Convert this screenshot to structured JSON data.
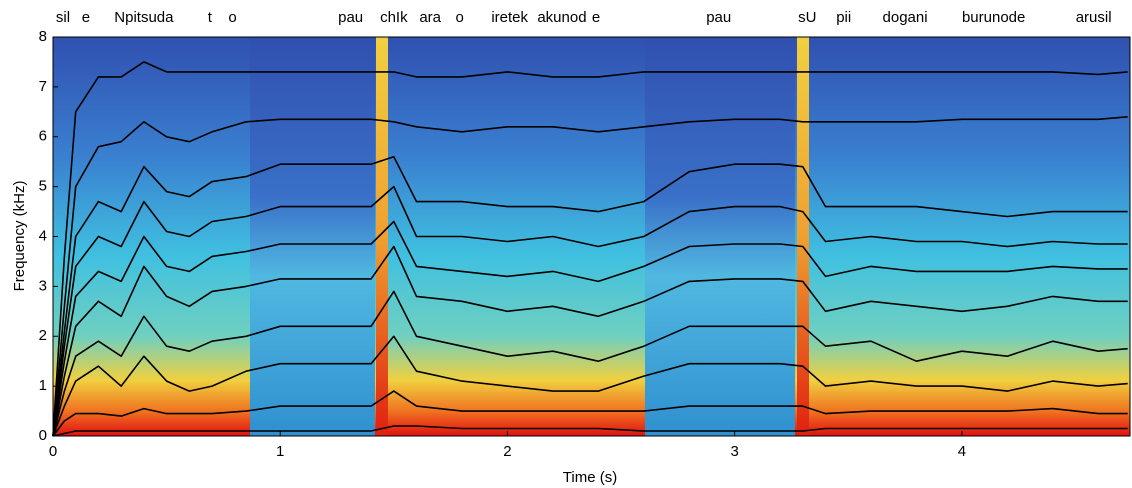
{
  "chart_data": {
    "type": "line",
    "xlabel": "Time (s)",
    "ylabel": "Frequency (kHz)",
    "xlim": [
      0,
      4.74
    ],
    "ylim": [
      0,
      8
    ],
    "xticks": [
      0,
      1,
      2,
      3,
      4
    ],
    "yticks": [
      0,
      1,
      2,
      3,
      4,
      5,
      6,
      7,
      8
    ],
    "phonemes": {
      "labels": [
        "sil",
        "e",
        "Npitsuda",
        "t",
        "o",
        "pau",
        "chIk",
        "ara",
        "o",
        "iretek",
        "akunod",
        "e",
        "pau",
        "sU",
        "pii",
        "dogani",
        "burunode",
        "arusil"
      ],
      "x": [
        0.044,
        0.145,
        0.4,
        0.69,
        0.79,
        1.31,
        1.5,
        1.66,
        1.79,
        2.01,
        2.24,
        2.39,
        2.93,
        3.32,
        3.48,
        3.75,
        4.14,
        4.58
      ]
    },
    "x": [
      0,
      0.05,
      0.1,
      0.2,
      0.3,
      0.4,
      0.5,
      0.6,
      0.7,
      0.85,
      1.0,
      1.2,
      1.4,
      1.5,
      1.6,
      1.8,
      2.0,
      2.2,
      2.4,
      2.6,
      2.8,
      3.0,
      3.2,
      3.3,
      3.4,
      3.6,
      3.8,
      4.0,
      4.2,
      4.4,
      4.6,
      4.73
    ],
    "series": [
      {
        "color": "#000000",
        "values": [
          0,
          0.05,
          0.1,
          0.1,
          0.1,
          0.1,
          0.1,
          0.1,
          0.1,
          0.1,
          0.1,
          0.1,
          0.1,
          0.2,
          0.2,
          0.15,
          0.15,
          0.15,
          0.15,
          0.1,
          0.1,
          0.1,
          0.1,
          0.1,
          0.15,
          0.15,
          0.15,
          0.15,
          0.15,
          0.15,
          0.15,
          0.15
        ]
      },
      {
        "color": "#000000",
        "values": [
          0,
          0.3,
          0.45,
          0.45,
          0.4,
          0.55,
          0.45,
          0.45,
          0.45,
          0.5,
          0.6,
          0.6,
          0.6,
          0.9,
          0.6,
          0.5,
          0.5,
          0.5,
          0.5,
          0.5,
          0.6,
          0.6,
          0.6,
          0.6,
          0.45,
          0.5,
          0.5,
          0.5,
          0.5,
          0.55,
          0.45,
          0.45
        ]
      },
      {
        "color": "#000000",
        "values": [
          0,
          0.6,
          1.1,
          1.4,
          1.0,
          1.6,
          1.1,
          0.9,
          1.0,
          1.3,
          1.45,
          1.45,
          1.45,
          2.0,
          1.3,
          1.1,
          1.0,
          0.9,
          0.9,
          1.2,
          1.45,
          1.45,
          1.45,
          1.4,
          1.0,
          1.1,
          1.0,
          1.0,
          0.9,
          1.1,
          1.0,
          1.05
        ]
      },
      {
        "color": "#000000",
        "values": [
          0,
          0.9,
          1.6,
          1.9,
          1.6,
          2.4,
          1.8,
          1.7,
          1.9,
          2.0,
          2.2,
          2.2,
          2.2,
          2.9,
          2.0,
          1.8,
          1.6,
          1.7,
          1.5,
          1.8,
          2.2,
          2.2,
          2.2,
          2.2,
          1.8,
          1.9,
          1.5,
          1.7,
          1.6,
          1.9,
          1.7,
          1.75
        ]
      },
      {
        "color": "#000000",
        "values": [
          0,
          1.2,
          2.2,
          2.7,
          2.4,
          3.4,
          2.8,
          2.6,
          2.9,
          3.0,
          3.15,
          3.15,
          3.15,
          3.8,
          2.8,
          2.7,
          2.5,
          2.6,
          2.4,
          2.7,
          3.1,
          3.15,
          3.15,
          3.1,
          2.5,
          2.7,
          2.6,
          2.5,
          2.6,
          2.8,
          2.7,
          2.7
        ]
      },
      {
        "color": "#000000",
        "values": [
          0,
          1.5,
          2.8,
          3.3,
          3.1,
          4.0,
          3.4,
          3.3,
          3.6,
          3.7,
          3.85,
          3.85,
          3.85,
          4.3,
          3.4,
          3.3,
          3.2,
          3.3,
          3.1,
          3.4,
          3.8,
          3.85,
          3.85,
          3.8,
          3.2,
          3.4,
          3.3,
          3.3,
          3.3,
          3.4,
          3.35,
          3.35
        ]
      },
      {
        "color": "#000000",
        "values": [
          0,
          1.8,
          3.4,
          4.0,
          3.8,
          4.7,
          4.1,
          4.0,
          4.3,
          4.4,
          4.6,
          4.6,
          4.6,
          5.0,
          4.0,
          4.0,
          3.9,
          4.0,
          3.8,
          4.0,
          4.5,
          4.6,
          4.6,
          4.5,
          3.9,
          4.0,
          3.9,
          3.9,
          3.8,
          3.9,
          3.85,
          3.85
        ]
      },
      {
        "color": "#000000",
        "values": [
          0,
          2.1,
          4.0,
          4.7,
          4.5,
          5.4,
          4.9,
          4.8,
          5.1,
          5.2,
          5.45,
          5.45,
          5.45,
          5.6,
          4.7,
          4.7,
          4.6,
          4.6,
          4.5,
          4.7,
          5.3,
          5.45,
          5.45,
          5.4,
          4.6,
          4.6,
          4.6,
          4.5,
          4.4,
          4.5,
          4.5,
          4.5
        ]
      },
      {
        "color": "#000000",
        "values": [
          0,
          2.6,
          5.0,
          5.8,
          5.9,
          6.3,
          6.0,
          5.9,
          6.1,
          6.3,
          6.35,
          6.35,
          6.35,
          6.3,
          6.2,
          6.1,
          6.2,
          6.2,
          6.1,
          6.2,
          6.3,
          6.35,
          6.35,
          6.3,
          6.3,
          6.3,
          6.3,
          6.35,
          6.35,
          6.35,
          6.35,
          6.4
        ]
      },
      {
        "color": "#000000",
        "values": [
          0,
          3.6,
          6.5,
          7.2,
          7.2,
          7.5,
          7.3,
          7.3,
          7.3,
          7.3,
          7.3,
          7.3,
          7.3,
          7.3,
          7.2,
          7.2,
          7.3,
          7.2,
          7.2,
          7.3,
          7.3,
          7.3,
          7.3,
          7.3,
          7.3,
          7.3,
          7.3,
          7.3,
          7.3,
          7.3,
          7.25,
          7.3
        ]
      }
    ]
  }
}
